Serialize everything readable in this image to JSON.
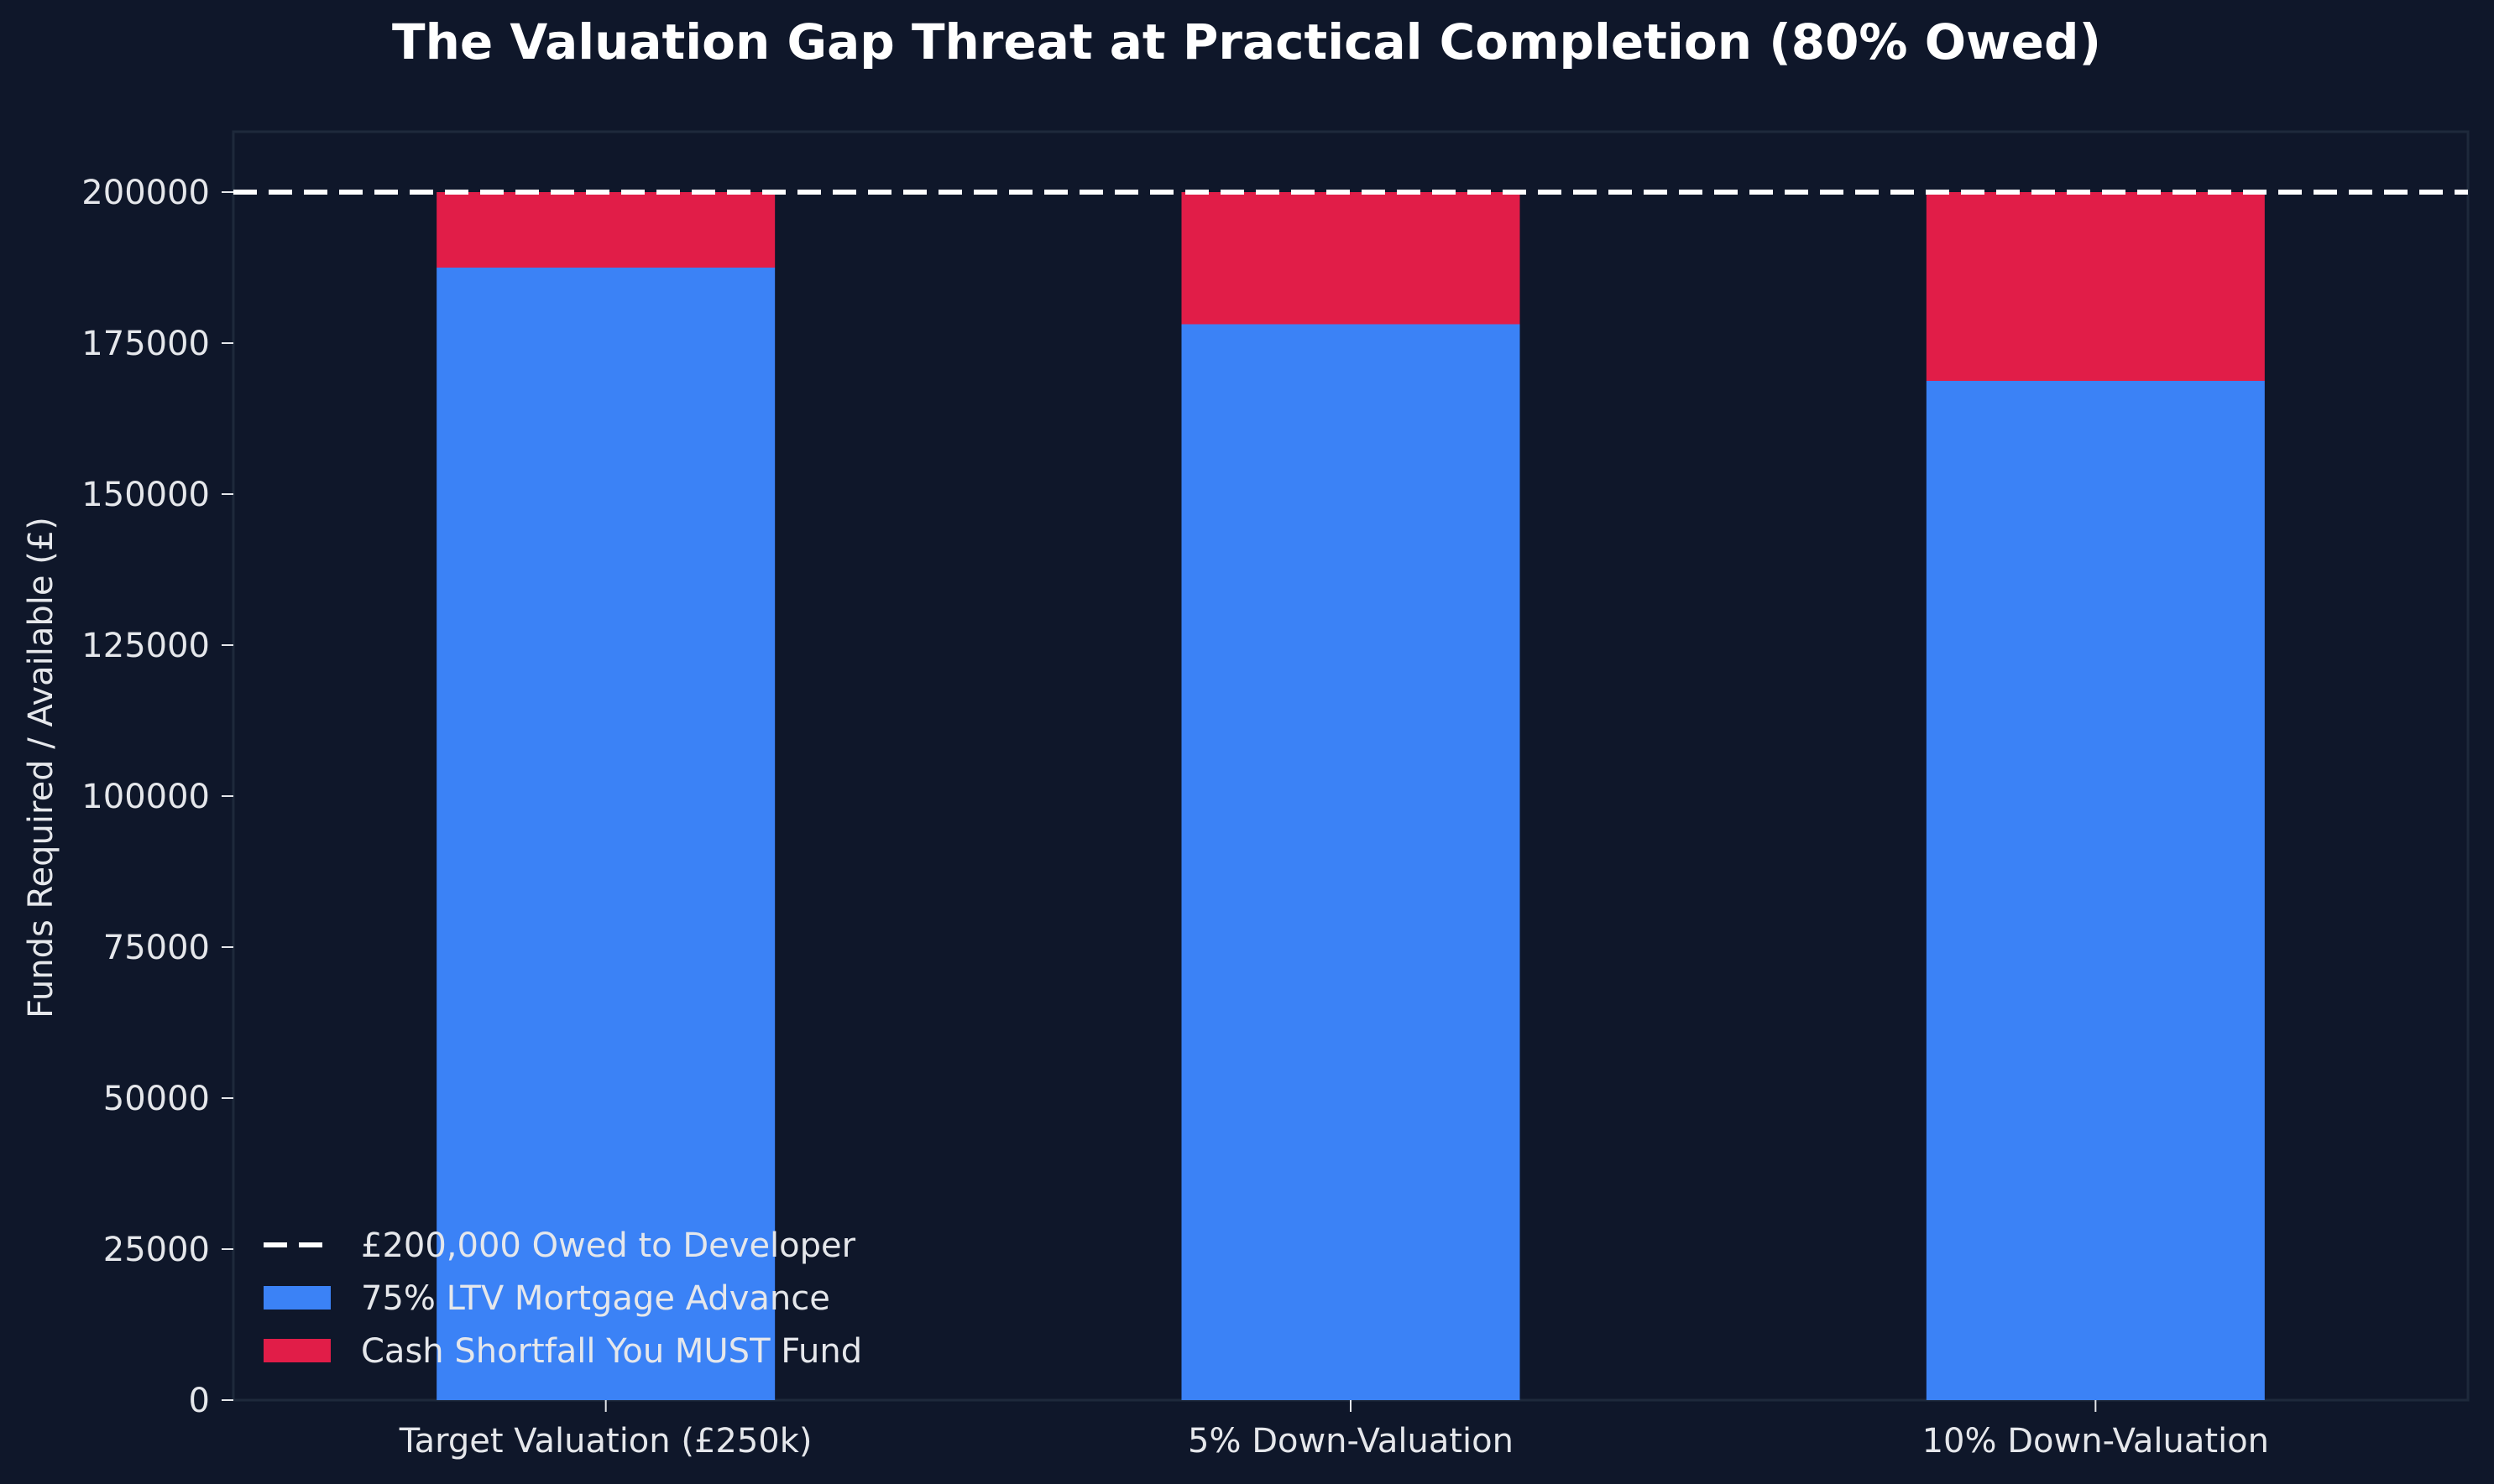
{
  "chart_data": {
    "type": "bar",
    "stacked": true,
    "title": "The Valuation Gap Threat at Practical Completion (80% Owed)",
    "xlabel": "",
    "ylabel": "Funds Required / Available (£)",
    "categories": [
      "Target Valuation (£250k)",
      "5% Down-Valuation",
      "10% Down-Valuation"
    ],
    "series": [
      {
        "name": "75% LTV Mortgage Advance",
        "values": [
          187500,
          178125,
          168750
        ],
        "color": "#3b82f6"
      },
      {
        "name": "Cash Shortfall You MUST Fund",
        "values": [
          12500,
          21875,
          31250
        ],
        "color": "#e11d48"
      }
    ],
    "reference_line": {
      "name": "£200,000 Owed to Developer",
      "value": 200000,
      "color": "#ffffff",
      "style": "dashed"
    },
    "ylim": [
      0,
      210000
    ],
    "yticks": [
      "0",
      "25000",
      "50000",
      "75000",
      "100000",
      "125000",
      "150000",
      "175000",
      "200000"
    ],
    "grid": false,
    "legend_position": "lower-left",
    "background": "#0f172a"
  }
}
